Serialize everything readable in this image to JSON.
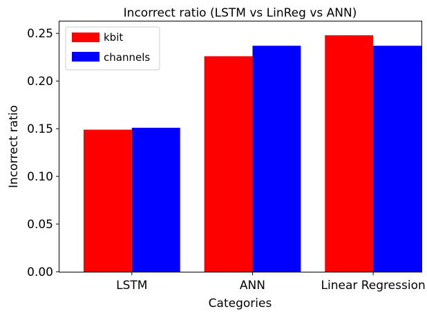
{
  "chart_data": {
    "type": "bar",
    "title": "Incorrect ratio (LSTM vs LinReg vs ANN)",
    "xlabel": "Categories",
    "ylabel": "Incorrect ratio",
    "categories": [
      "LSTM",
      "ANN",
      "Linear Regression"
    ],
    "series": [
      {
        "name": "kbit",
        "color": "#ff0000",
        "values": [
          0.149,
          0.226,
          0.248
        ]
      },
      {
        "name": "channels",
        "color": "#0000ff",
        "values": [
          0.151,
          0.237,
          0.237
        ]
      }
    ],
    "ylim": [
      0,
      0.2625
    ],
    "yticks": [
      "0.00",
      "0.05",
      "0.10",
      "0.15",
      "0.20",
      "0.25"
    ],
    "ytick_values": [
      0,
      0.05,
      0.1,
      0.15,
      0.2,
      0.25
    ],
    "legend_position": "upper-left",
    "grid": false
  }
}
